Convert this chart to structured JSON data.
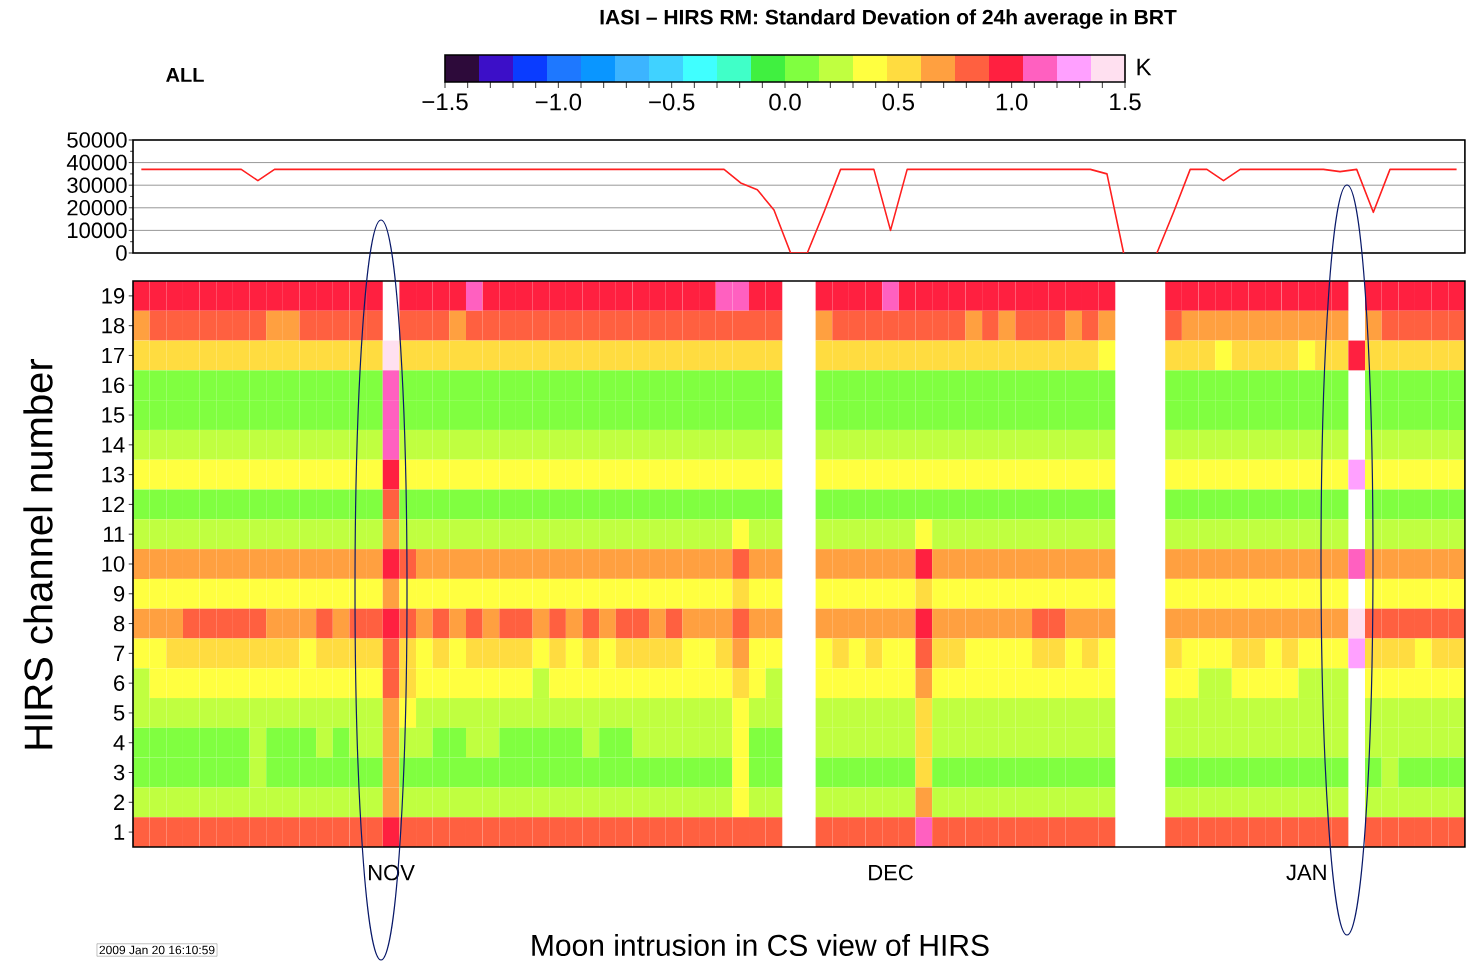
{
  "chart_data": [
    {
      "type": "line",
      "title": "IASI – HIRS RM: Standard Devation of 24h average in BRT",
      "annotations": [
        "ALL"
      ],
      "categories": [
        null,
        null,
        null,
        null,
        null,
        null,
        null,
        null,
        null,
        null,
        null,
        null,
        null,
        null,
        null,
        null,
        null,
        null,
        null,
        null,
        null,
        null,
        null,
        null,
        null,
        null,
        null,
        null,
        null,
        null,
        null,
        null,
        null,
        null,
        null,
        null,
        null,
        null,
        null,
        null,
        null,
        null,
        null,
        null,
        null,
        null,
        null,
        null,
        null,
        null,
        null,
        null,
        null,
        null,
        null,
        null,
        null,
        null,
        null,
        null,
        null,
        null,
        null,
        null,
        null,
        null,
        null,
        null,
        null,
        null,
        null,
        null,
        null,
        null,
        null,
        null,
        null,
        null,
        null,
        null
      ],
      "values": [
        37000,
        37000,
        37000,
        37000,
        37000,
        37000,
        37000,
        32000,
        37000,
        37000,
        37000,
        37000,
        37000,
        37000,
        37000,
        37000,
        37000,
        37000,
        37000,
        37000,
        37000,
        37000,
        37000,
        37000,
        37000,
        37000,
        37000,
        37000,
        37000,
        37000,
        37000,
        37000,
        37000,
        37000,
        37000,
        37000,
        31000,
        28000,
        19000,
        0,
        0,
        18000,
        37000,
        37000,
        37000,
        10000,
        37000,
        37000,
        37000,
        37000,
        37000,
        37000,
        37000,
        37000,
        37000,
        37000,
        37000,
        37000,
        35000,
        0,
        null,
        0,
        18000,
        37000,
        37000,
        32000,
        37000,
        37000,
        37000,
        37000,
        37000,
        37000,
        36000,
        37000,
        18000,
        37000,
        37000,
        37000,
        37000,
        37000
      ],
      "color": "#ff2020",
      "ylim": [
        0,
        50000
      ],
      "yticks": [
        0,
        10000,
        20000,
        30000,
        40000,
        50000
      ],
      "grid": "y",
      "tick_labels": "y"
    },
    {
      "type": "heatmap",
      "ylabel": "HIRS channel number",
      "clabel": "K",
      "annotations": [
        "2009 Jan 20 16:10:59",
        "Moon intrusion in CS view of HIRS"
      ],
      "categories": [
        null,
        null,
        null,
        null,
        null,
        null,
        null,
        null,
        null,
        null,
        null,
        null,
        null,
        null,
        null,
        "NOV",
        null,
        null,
        null,
        null,
        null,
        null,
        null,
        null,
        null,
        null,
        null,
        null,
        null,
        null,
        null,
        null,
        null,
        null,
        null,
        null,
        null,
        null,
        null,
        null,
        null,
        null,
        null,
        null,
        null,
        "DEC",
        null,
        null,
        null,
        null,
        null,
        null,
        null,
        null,
        null,
        null,
        null,
        null,
        null,
        null,
        null,
        null,
        null,
        null,
        null,
        null,
        null,
        null,
        null,
        null,
        "JAN",
        null,
        null,
        null,
        null,
        null,
        null,
        null,
        null,
        null
      ],
      "y_categories": [
        "19",
        "18",
        "17",
        "16",
        "15",
        "14",
        "13",
        "12",
        "11",
        "10",
        "9",
        "8",
        "7",
        "6",
        "5",
        "4",
        "3",
        "2",
        "1"
      ],
      "clim": [
        -1.5,
        1.5
      ],
      "cticks": [
        {
          "value": -1.5,
          "label": "−1.5"
        },
        {
          "value": -1.4,
          "label": null
        },
        {
          "value": -1.3,
          "label": null
        },
        {
          "value": -1.2,
          "label": null
        },
        {
          "value": -1.1,
          "label": null
        },
        {
          "value": -1.0,
          "label": "−1.0"
        },
        {
          "value": -0.9,
          "label": null
        },
        {
          "value": -0.8,
          "label": null
        },
        {
          "value": -0.7,
          "label": null
        },
        {
          "value": -0.6,
          "label": null
        },
        {
          "value": -0.5,
          "label": "−0.5"
        },
        {
          "value": -0.4,
          "label": null
        },
        {
          "value": -0.3,
          "label": null
        },
        {
          "value": -0.2,
          "label": null
        },
        {
          "value": -0.1,
          "label": null
        },
        {
          "value": 0.0,
          "label": "0.0"
        },
        {
          "value": 0.1,
          "label": null
        },
        {
          "value": 0.2,
          "label": null
        },
        {
          "value": 0.3,
          "label": null
        },
        {
          "value": 0.4,
          "label": null
        },
        {
          "value": 0.5,
          "label": "0.5"
        },
        {
          "value": 0.6,
          "label": null
        },
        {
          "value": 0.7,
          "label": null
        },
        {
          "value": 0.8,
          "label": null
        },
        {
          "value": 0.9,
          "label": null
        },
        {
          "value": 1.0,
          "label": "1.0"
        },
        {
          "value": 1.1,
          "label": null
        },
        {
          "value": 1.2,
          "label": null
        },
        {
          "value": 1.3,
          "label": null
        },
        {
          "value": 1.4,
          "label": null
        },
        {
          "value": 1.5,
          "label": "1.5"
        }
      ],
      "colors": [
        "#2d0a3a",
        "#3c0fc8",
        "#0a3cff",
        "#1e78ff",
        "#0a96ff",
        "#3cb4ff",
        "#40d2ff",
        "#40ffff",
        "#40ffc8",
        "#40f040",
        "#80ff40",
        "#c0ff40",
        "#ffff40",
        "#ffdc40",
        "#ffa040",
        "#ff6040",
        "#ff2040",
        "#ff60c0",
        "#ffa0ff",
        "#ffe0f0"
      ],
      "cells": [
        [
          0.98,
          0.98,
          0.98,
          0.98,
          0.98,
          0.98,
          0.98,
          0.98,
          0.98,
          0.98,
          0.98,
          0.98,
          0.98,
          0.98,
          0.98,
          null,
          0.98,
          0.98,
          0.98,
          0.98,
          1.13,
          0.98,
          0.98,
          0.98,
          0.98,
          0.98,
          0.98,
          0.98,
          0.98,
          0.98,
          0.98,
          0.98,
          0.98,
          0.98,
          0.98,
          1.13,
          1.13,
          0.98,
          0.98,
          null,
          null,
          0.98,
          0.98,
          0.98,
          0.98,
          1.13,
          0.98,
          0.98,
          0.98,
          0.98,
          0.98,
          0.98,
          0.98,
          0.98,
          0.98,
          0.98,
          0.98,
          0.98,
          0.98,
          null,
          null,
          null,
          0.98,
          0.98,
          0.98,
          0.98,
          0.98,
          0.98,
          0.98,
          0.98,
          0.98,
          0.98,
          0.98,
          null,
          0.98,
          0.98,
          0.98,
          0.98,
          0.98,
          0.98
        ],
        [
          0.68,
          0.83,
          0.83,
          0.83,
          0.83,
          0.83,
          0.83,
          0.83,
          0.68,
          0.68,
          0.83,
          0.83,
          0.83,
          0.83,
          0.83,
          null,
          0.83,
          0.83,
          0.83,
          0.68,
          0.83,
          0.83,
          0.83,
          0.83,
          0.83,
          0.83,
          0.83,
          0.83,
          0.83,
          0.83,
          0.83,
          0.83,
          0.83,
          0.83,
          0.83,
          0.83,
          0.83,
          0.83,
          0.83,
          null,
          null,
          0.68,
          0.83,
          0.83,
          0.83,
          0.83,
          0.83,
          0.83,
          0.83,
          0.83,
          0.68,
          0.83,
          0.68,
          0.83,
          0.83,
          0.83,
          0.68,
          0.83,
          0.68,
          null,
          null,
          null,
          0.83,
          0.68,
          0.68,
          0.68,
          0.68,
          0.68,
          0.68,
          0.68,
          0.68,
          0.68,
          0.68,
          null,
          0.68,
          0.83,
          0.83,
          0.83,
          0.83,
          0.83
        ],
        [
          0.53,
          0.53,
          0.53,
          0.53,
          0.53,
          0.53,
          0.53,
          0.53,
          0.53,
          0.53,
          0.53,
          0.53,
          0.53,
          0.53,
          0.53,
          1.43,
          0.53,
          0.53,
          0.53,
          0.53,
          0.53,
          0.53,
          0.53,
          0.53,
          0.53,
          0.53,
          0.53,
          0.53,
          0.53,
          0.53,
          0.53,
          0.53,
          0.53,
          0.53,
          0.53,
          0.53,
          0.53,
          0.53,
          0.53,
          null,
          null,
          0.53,
          0.53,
          0.53,
          0.53,
          0.53,
          0.53,
          0.53,
          0.53,
          0.53,
          0.53,
          0.53,
          0.53,
          0.53,
          0.53,
          0.53,
          0.53,
          0.53,
          0.38,
          null,
          null,
          null,
          0.53,
          0.53,
          0.53,
          0.38,
          0.53,
          0.53,
          0.53,
          0.53,
          0.38,
          0.53,
          0.53,
          0.98,
          0.53,
          0.53,
          0.53,
          0.53,
          0.53,
          0.53
        ],
        [
          0.08,
          0.08,
          0.08,
          0.08,
          0.08,
          0.08,
          0.08,
          0.08,
          0.08,
          0.08,
          0.08,
          0.08,
          0.08,
          0.08,
          0.08,
          1.13,
          0.08,
          0.08,
          0.08,
          0.08,
          0.08,
          0.08,
          0.08,
          0.08,
          0.08,
          0.08,
          0.08,
          0.08,
          0.08,
          0.08,
          0.08,
          0.08,
          0.08,
          0.08,
          0.08,
          0.08,
          0.08,
          0.08,
          0.08,
          null,
          null,
          0.08,
          0.08,
          0.08,
          0.08,
          0.08,
          0.08,
          0.08,
          0.08,
          0.08,
          0.08,
          0.08,
          0.08,
          0.08,
          0.08,
          0.08,
          0.08,
          0.08,
          0.08,
          null,
          null,
          null,
          0.08,
          0.08,
          0.08,
          0.08,
          0.08,
          0.08,
          0.08,
          0.08,
          0.08,
          0.08,
          0.08,
          null,
          0.08,
          0.08,
          0.08,
          0.08,
          0.08,
          0.08
        ],
        [
          0.08,
          0.08,
          0.08,
          0.08,
          0.08,
          0.08,
          0.08,
          0.08,
          0.08,
          0.08,
          0.08,
          0.08,
          0.08,
          0.08,
          0.08,
          1.13,
          0.08,
          0.08,
          0.08,
          0.08,
          0.08,
          0.08,
          0.08,
          0.08,
          0.08,
          0.08,
          0.08,
          0.08,
          0.08,
          0.08,
          0.08,
          0.08,
          0.08,
          0.08,
          0.08,
          0.08,
          0.08,
          0.08,
          0.08,
          null,
          null,
          0.08,
          0.08,
          0.08,
          0.08,
          0.08,
          0.08,
          0.08,
          0.08,
          0.08,
          0.08,
          0.08,
          0.08,
          0.08,
          0.08,
          0.08,
          0.08,
          0.08,
          0.08,
          null,
          null,
          null,
          0.08,
          0.08,
          0.08,
          0.08,
          0.08,
          0.08,
          0.08,
          0.08,
          0.08,
          0.08,
          0.08,
          null,
          0.08,
          0.08,
          0.08,
          0.08,
          0.08,
          0.08
        ],
        [
          0.23,
          0.23,
          0.23,
          0.23,
          0.23,
          0.23,
          0.23,
          0.23,
          0.23,
          0.23,
          0.23,
          0.23,
          0.23,
          0.23,
          0.23,
          1.13,
          0.23,
          0.23,
          0.23,
          0.23,
          0.23,
          0.23,
          0.23,
          0.23,
          0.23,
          0.23,
          0.23,
          0.23,
          0.23,
          0.23,
          0.23,
          0.23,
          0.23,
          0.23,
          0.23,
          0.23,
          0.23,
          0.23,
          0.23,
          null,
          null,
          0.23,
          0.23,
          0.23,
          0.23,
          0.23,
          0.23,
          0.23,
          0.23,
          0.23,
          0.23,
          0.23,
          0.23,
          0.23,
          0.23,
          0.23,
          0.23,
          0.23,
          0.23,
          null,
          null,
          null,
          0.23,
          0.23,
          0.23,
          0.23,
          0.23,
          0.23,
          0.23,
          0.23,
          0.23,
          0.23,
          0.23,
          null,
          0.23,
          0.23,
          0.23,
          0.23,
          0.23,
          0.23
        ],
        [
          0.38,
          0.38,
          0.38,
          0.38,
          0.38,
          0.38,
          0.38,
          0.38,
          0.38,
          0.38,
          0.38,
          0.38,
          0.38,
          0.38,
          0.38,
          0.98,
          0.38,
          0.38,
          0.38,
          0.38,
          0.38,
          0.38,
          0.38,
          0.38,
          0.38,
          0.38,
          0.38,
          0.38,
          0.38,
          0.38,
          0.38,
          0.38,
          0.38,
          0.38,
          0.38,
          0.38,
          0.38,
          0.38,
          0.38,
          null,
          null,
          0.38,
          0.38,
          0.38,
          0.38,
          0.38,
          0.38,
          0.38,
          0.38,
          0.38,
          0.38,
          0.38,
          0.38,
          0.38,
          0.38,
          0.38,
          0.38,
          0.38,
          0.38,
          null,
          null,
          null,
          0.38,
          0.38,
          0.38,
          0.38,
          0.38,
          0.38,
          0.38,
          0.38,
          0.38,
          0.38,
          0.38,
          1.28,
          0.38,
          0.38,
          0.38,
          0.38,
          0.38,
          0.38
        ],
        [
          0.08,
          0.08,
          0.08,
          0.08,
          0.08,
          0.08,
          0.08,
          0.08,
          0.08,
          0.08,
          0.08,
          0.08,
          0.08,
          0.08,
          0.08,
          0.83,
          0.08,
          0.08,
          0.08,
          0.08,
          0.08,
          0.08,
          0.08,
          0.08,
          0.08,
          0.08,
          0.08,
          0.08,
          0.08,
          0.08,
          0.08,
          0.08,
          0.08,
          0.08,
          0.08,
          0.08,
          0.08,
          0.08,
          0.08,
          null,
          null,
          0.08,
          0.08,
          0.08,
          0.08,
          0.08,
          0.08,
          0.08,
          0.08,
          0.08,
          0.08,
          0.08,
          0.08,
          0.08,
          0.08,
          0.08,
          0.08,
          0.08,
          0.08,
          null,
          null,
          null,
          0.08,
          0.08,
          0.08,
          0.08,
          0.08,
          0.08,
          0.08,
          0.08,
          0.08,
          0.08,
          0.08,
          null,
          0.08,
          0.08,
          0.08,
          0.08,
          0.08,
          0.08
        ],
        [
          0.23,
          0.23,
          0.23,
          0.23,
          0.23,
          0.23,
          0.23,
          0.23,
          0.23,
          0.23,
          0.23,
          0.23,
          0.23,
          0.23,
          0.23,
          0.68,
          0.23,
          0.23,
          0.23,
          0.23,
          0.23,
          0.23,
          0.23,
          0.23,
          0.23,
          0.23,
          0.23,
          0.23,
          0.23,
          0.23,
          0.23,
          0.23,
          0.23,
          0.23,
          0.23,
          0.23,
          0.38,
          0.23,
          0.23,
          null,
          null,
          0.23,
          0.23,
          0.23,
          0.23,
          0.23,
          0.23,
          0.38,
          0.23,
          0.23,
          0.23,
          0.23,
          0.23,
          0.23,
          0.23,
          0.23,
          0.23,
          0.23,
          0.23,
          null,
          null,
          null,
          0.23,
          0.23,
          0.23,
          0.23,
          0.23,
          0.23,
          0.23,
          0.23,
          0.23,
          0.23,
          0.23,
          null,
          0.23,
          0.23,
          0.23,
          0.23,
          0.23,
          0.23
        ],
        [
          0.68,
          0.68,
          0.68,
          0.68,
          0.68,
          0.68,
          0.68,
          0.68,
          0.68,
          0.68,
          0.68,
          0.68,
          0.68,
          0.68,
          0.68,
          0.98,
          0.83,
          0.68,
          0.68,
          0.68,
          0.68,
          0.68,
          0.68,
          0.68,
          0.68,
          0.68,
          0.68,
          0.68,
          0.68,
          0.68,
          0.68,
          0.68,
          0.68,
          0.68,
          0.68,
          0.68,
          0.83,
          0.68,
          0.68,
          null,
          null,
          0.68,
          0.68,
          0.68,
          0.68,
          0.68,
          0.68,
          0.98,
          0.68,
          0.68,
          0.68,
          0.68,
          0.68,
          0.68,
          0.68,
          0.68,
          0.68,
          0.68,
          0.68,
          null,
          null,
          null,
          0.68,
          0.68,
          0.68,
          0.68,
          0.68,
          0.68,
          0.68,
          0.68,
          0.68,
          0.68,
          0.68,
          1.13,
          0.68,
          0.68,
          0.68,
          0.68,
          0.68,
          0.68
        ],
        [
          0.38,
          0.38,
          0.38,
          0.38,
          0.38,
          0.38,
          0.38,
          0.38,
          0.38,
          0.38,
          0.38,
          0.38,
          0.38,
          0.38,
          0.38,
          0.68,
          0.38,
          0.38,
          0.38,
          0.38,
          0.38,
          0.38,
          0.38,
          0.38,
          0.38,
          0.38,
          0.38,
          0.38,
          0.38,
          0.38,
          0.38,
          0.38,
          0.38,
          0.38,
          0.38,
          0.38,
          0.53,
          0.38,
          0.38,
          null,
          null,
          0.38,
          0.38,
          0.38,
          0.38,
          0.38,
          0.38,
          0.53,
          0.38,
          0.38,
          0.38,
          0.38,
          0.38,
          0.38,
          0.38,
          0.38,
          0.38,
          0.38,
          0.38,
          null,
          null,
          null,
          0.38,
          0.38,
          0.38,
          0.38,
          0.38,
          0.38,
          0.38,
          0.38,
          0.38,
          0.38,
          0.38,
          null,
          0.38,
          0.38,
          0.38,
          0.38,
          0.38,
          0.38
        ],
        [
          0.68,
          0.68,
          0.68,
          0.83,
          0.83,
          0.83,
          0.83,
          0.83,
          0.68,
          0.68,
          0.68,
          0.83,
          0.68,
          0.83,
          0.83,
          0.98,
          0.83,
          0.68,
          0.83,
          0.68,
          0.83,
          0.68,
          0.83,
          0.83,
          0.68,
          0.83,
          0.68,
          0.83,
          0.68,
          0.83,
          0.83,
          0.68,
          0.83,
          0.68,
          0.68,
          0.68,
          0.83,
          0.68,
          0.68,
          null,
          null,
          0.68,
          0.68,
          0.68,
          0.68,
          0.68,
          0.68,
          0.98,
          0.68,
          0.68,
          0.68,
          0.68,
          0.68,
          0.68,
          0.83,
          0.83,
          0.68,
          0.68,
          0.68,
          null,
          null,
          null,
          0.68,
          0.68,
          0.68,
          0.68,
          0.68,
          0.68,
          0.68,
          0.68,
          0.68,
          0.68,
          0.68,
          1.43,
          0.83,
          0.83,
          0.83,
          0.83,
          0.83,
          0.83
        ],
        [
          0.38,
          0.38,
          0.53,
          0.53,
          0.53,
          0.53,
          0.53,
          0.53,
          0.53,
          0.53,
          0.38,
          0.53,
          0.53,
          0.53,
          0.53,
          0.83,
          0.53,
          0.38,
          0.53,
          0.38,
          0.53,
          0.53,
          0.53,
          0.53,
          0.38,
          0.53,
          0.38,
          0.53,
          0.38,
          0.53,
          0.53,
          0.53,
          0.53,
          0.38,
          0.38,
          0.53,
          0.68,
          0.38,
          0.38,
          null,
          null,
          0.38,
          0.53,
          0.38,
          0.53,
          0.38,
          0.38,
          0.83,
          0.53,
          0.53,
          0.38,
          0.38,
          0.38,
          0.38,
          0.53,
          0.53,
          0.38,
          0.53,
          0.38,
          null,
          null,
          null,
          0.53,
          0.38,
          0.38,
          0.38,
          0.53,
          0.53,
          0.38,
          0.53,
          0.38,
          0.38,
          0.38,
          1.28,
          0.53,
          0.53,
          0.53,
          0.38,
          0.53,
          0.53
        ],
        [
          0.23,
          0.38,
          0.38,
          0.38,
          0.38,
          0.38,
          0.38,
          0.38,
          0.38,
          0.38,
          0.38,
          0.38,
          0.38,
          0.38,
          0.38,
          0.83,
          0.53,
          0.38,
          0.38,
          0.38,
          0.38,
          0.38,
          0.38,
          0.38,
          0.23,
          0.38,
          0.38,
          0.38,
          0.38,
          0.38,
          0.38,
          0.38,
          0.38,
          0.38,
          0.38,
          0.38,
          0.53,
          0.38,
          0.23,
          null,
          null,
          0.38,
          0.38,
          0.38,
          0.38,
          0.38,
          0.38,
          0.68,
          0.38,
          0.38,
          0.38,
          0.38,
          0.38,
          0.38,
          0.38,
          0.38,
          0.38,
          0.38,
          0.38,
          null,
          null,
          null,
          0.38,
          0.38,
          0.23,
          0.23,
          0.38,
          0.38,
          0.38,
          0.38,
          0.23,
          0.23,
          0.23,
          null,
          0.38,
          0.38,
          0.38,
          0.38,
          0.38,
          0.38
        ],
        [
          0.23,
          0.23,
          0.23,
          0.23,
          0.23,
          0.23,
          0.23,
          0.23,
          0.23,
          0.23,
          0.23,
          0.23,
          0.23,
          0.23,
          0.23,
          0.68,
          0.38,
          0.23,
          0.23,
          0.23,
          0.23,
          0.23,
          0.23,
          0.23,
          0.23,
          0.23,
          0.23,
          0.23,
          0.23,
          0.23,
          0.23,
          0.23,
          0.23,
          0.23,
          0.23,
          0.23,
          0.38,
          0.23,
          0.23,
          null,
          null,
          0.23,
          0.23,
          0.23,
          0.23,
          0.23,
          0.23,
          0.53,
          0.23,
          0.23,
          0.23,
          0.23,
          0.23,
          0.23,
          0.23,
          0.23,
          0.23,
          0.23,
          0.23,
          null,
          null,
          null,
          0.23,
          0.23,
          0.23,
          0.23,
          0.23,
          0.23,
          0.23,
          0.23,
          0.23,
          0.23,
          0.23,
          null,
          0.23,
          0.23,
          0.23,
          0.23,
          0.23,
          0.23
        ],
        [
          0.08,
          0.08,
          0.08,
          0.08,
          0.08,
          0.08,
          0.08,
          0.23,
          0.08,
          0.08,
          0.08,
          0.23,
          0.08,
          0.23,
          0.23,
          0.68,
          0.23,
          0.23,
          0.08,
          0.08,
          0.23,
          0.23,
          0.08,
          0.08,
          0.08,
          0.08,
          0.08,
          0.23,
          0.08,
          0.08,
          0.23,
          0.23,
          0.23,
          0.23,
          0.23,
          0.23,
          0.38,
          0.08,
          0.08,
          null,
          null,
          0.23,
          0.23,
          0.23,
          0.23,
          0.23,
          0.23,
          0.53,
          0.23,
          0.23,
          0.23,
          0.23,
          0.23,
          0.23,
          0.23,
          0.23,
          0.23,
          0.23,
          0.23,
          null,
          null,
          null,
          0.23,
          0.23,
          0.23,
          0.23,
          0.23,
          0.23,
          0.23,
          0.23,
          0.23,
          0.23,
          0.23,
          null,
          0.23,
          0.23,
          0.23,
          0.23,
          0.23,
          0.23
        ],
        [
          0.08,
          0.08,
          0.08,
          0.08,
          0.08,
          0.08,
          0.08,
          0.23,
          0.08,
          0.08,
          0.08,
          0.08,
          0.08,
          0.08,
          0.08,
          0.68,
          0.08,
          0.08,
          0.08,
          0.08,
          0.08,
          0.08,
          0.08,
          0.08,
          0.08,
          0.08,
          0.08,
          0.08,
          0.08,
          0.08,
          0.08,
          0.08,
          0.08,
          0.08,
          0.08,
          0.08,
          0.38,
          0.08,
          0.08,
          null,
          null,
          0.08,
          0.08,
          0.08,
          0.08,
          0.08,
          0.08,
          0.53,
          0.08,
          0.08,
          0.08,
          0.08,
          0.08,
          0.08,
          0.08,
          0.08,
          0.08,
          0.08,
          0.08,
          null,
          null,
          null,
          0.08,
          0.08,
          0.08,
          0.08,
          0.08,
          0.08,
          0.08,
          0.08,
          0.08,
          0.08,
          0.08,
          null,
          0.08,
          0.23,
          0.08,
          0.08,
          0.08,
          0.08
        ],
        [
          0.23,
          0.23,
          0.23,
          0.23,
          0.23,
          0.23,
          0.23,
          0.23,
          0.23,
          0.23,
          0.23,
          0.23,
          0.23,
          0.23,
          0.23,
          0.68,
          0.23,
          0.23,
          0.23,
          0.23,
          0.23,
          0.23,
          0.23,
          0.23,
          0.23,
          0.23,
          0.23,
          0.23,
          0.23,
          0.23,
          0.23,
          0.23,
          0.23,
          0.23,
          0.23,
          0.23,
          0.38,
          0.23,
          0.23,
          null,
          null,
          0.23,
          0.23,
          0.23,
          0.23,
          0.23,
          0.23,
          0.68,
          0.23,
          0.23,
          0.23,
          0.23,
          0.23,
          0.23,
          0.23,
          0.23,
          0.23,
          0.23,
          0.23,
          null,
          null,
          null,
          0.23,
          0.23,
          0.23,
          0.23,
          0.23,
          0.23,
          0.23,
          0.23,
          0.23,
          0.23,
          0.23,
          null,
          0.23,
          0.23,
          0.23,
          0.23,
          0.23,
          0.23
        ],
        [
          0.83,
          0.83,
          0.83,
          0.83,
          0.83,
          0.83,
          0.83,
          0.83,
          0.83,
          0.83,
          0.83,
          0.83,
          0.83,
          0.83,
          0.83,
          0.98,
          0.83,
          0.83,
          0.83,
          0.83,
          0.83,
          0.83,
          0.83,
          0.83,
          0.83,
          0.83,
          0.83,
          0.83,
          0.83,
          0.83,
          0.83,
          0.83,
          0.83,
          0.83,
          0.83,
          0.83,
          0.83,
          0.83,
          0.83,
          null,
          null,
          0.83,
          0.83,
          0.83,
          0.83,
          0.83,
          0.83,
          1.13,
          0.83,
          0.83,
          0.83,
          0.83,
          0.83,
          0.83,
          0.83,
          0.83,
          0.83,
          0.83,
          0.83,
          null,
          null,
          null,
          0.83,
          0.83,
          0.83,
          0.83,
          0.83,
          0.83,
          0.83,
          0.83,
          0.83,
          0.83,
          0.83,
          null,
          0.83,
          0.83,
          0.83,
          0.83,
          0.83,
          0.83
        ]
      ]
    }
  ]
}
